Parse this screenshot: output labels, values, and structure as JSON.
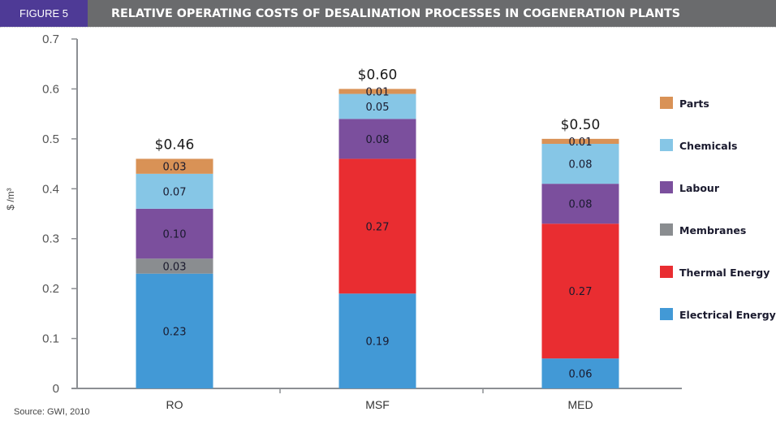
{
  "header": {
    "figure_label": "FIGURE 5",
    "title": "RELATIVE OPERATING COSTS OF DESALINATION PROCESSES IN COGENERATION PLANTS",
    "figure_label_color": "#4e3a96",
    "title_bar_color": "#6a6b6d"
  },
  "source": "Source: GWI, 2010",
  "chart_data": {
    "type": "bar",
    "stacked": true,
    "title": "RELATIVE OPERATING COSTS OF DESALINATION PROCESSES IN COGENERATION PLANTS",
    "xlabel": "",
    "ylabel": "$ /m³",
    "ylim": [
      0,
      0.7
    ],
    "yticks": [
      "0",
      "0.1",
      "0.2",
      "0.3",
      "0.4",
      "0.5",
      "0.6",
      "0.7"
    ],
    "ytick_values": [
      0,
      0.1,
      0.2,
      0.3,
      0.4,
      0.5,
      0.6,
      0.7
    ],
    "grid": false,
    "legend_position": "right",
    "categories": [
      "RO",
      "MSF",
      "MED"
    ],
    "totals": [
      "$0.46",
      "$0.60",
      "$0.50"
    ],
    "total_values": [
      0.46,
      0.6,
      0.5
    ],
    "series": [
      {
        "name": "Electrical Energy",
        "color": "#4299d6",
        "values": [
          0.23,
          0.19,
          0.06
        ],
        "labels": [
          "0.23",
          "0.19",
          "0.06"
        ]
      },
      {
        "name": "Thermal Energy",
        "color": "#e92d31",
        "values": [
          0,
          0.27,
          0.27
        ],
        "labels": [
          "",
          "0.27",
          "0.27"
        ]
      },
      {
        "name": "Membranes",
        "color": "#8a8d90",
        "values": [
          0.03,
          0,
          0
        ],
        "labels": [
          "0.03",
          "",
          ""
        ]
      },
      {
        "name": "Labour",
        "color": "#7b4f9d",
        "values": [
          0.1,
          0.08,
          0.08
        ],
        "labels": [
          "0.10",
          "0.08",
          "0.08"
        ]
      },
      {
        "name": "Chemicals",
        "color": "#86c6e6",
        "values": [
          0.07,
          0.05,
          0.08
        ],
        "labels": [
          "0.07",
          "0.05",
          "0.08"
        ]
      },
      {
        "name": "Parts",
        "color": "#d99256",
        "values": [
          0.03,
          0.01,
          0.01
        ],
        "labels": [
          "0.03",
          "0.01",
          "0.01"
        ]
      }
    ],
    "legend_order": [
      "Parts",
      "Chemicals",
      "Labour",
      "Membranes",
      "Thermal Energy",
      "Electrical Energy"
    ]
  }
}
